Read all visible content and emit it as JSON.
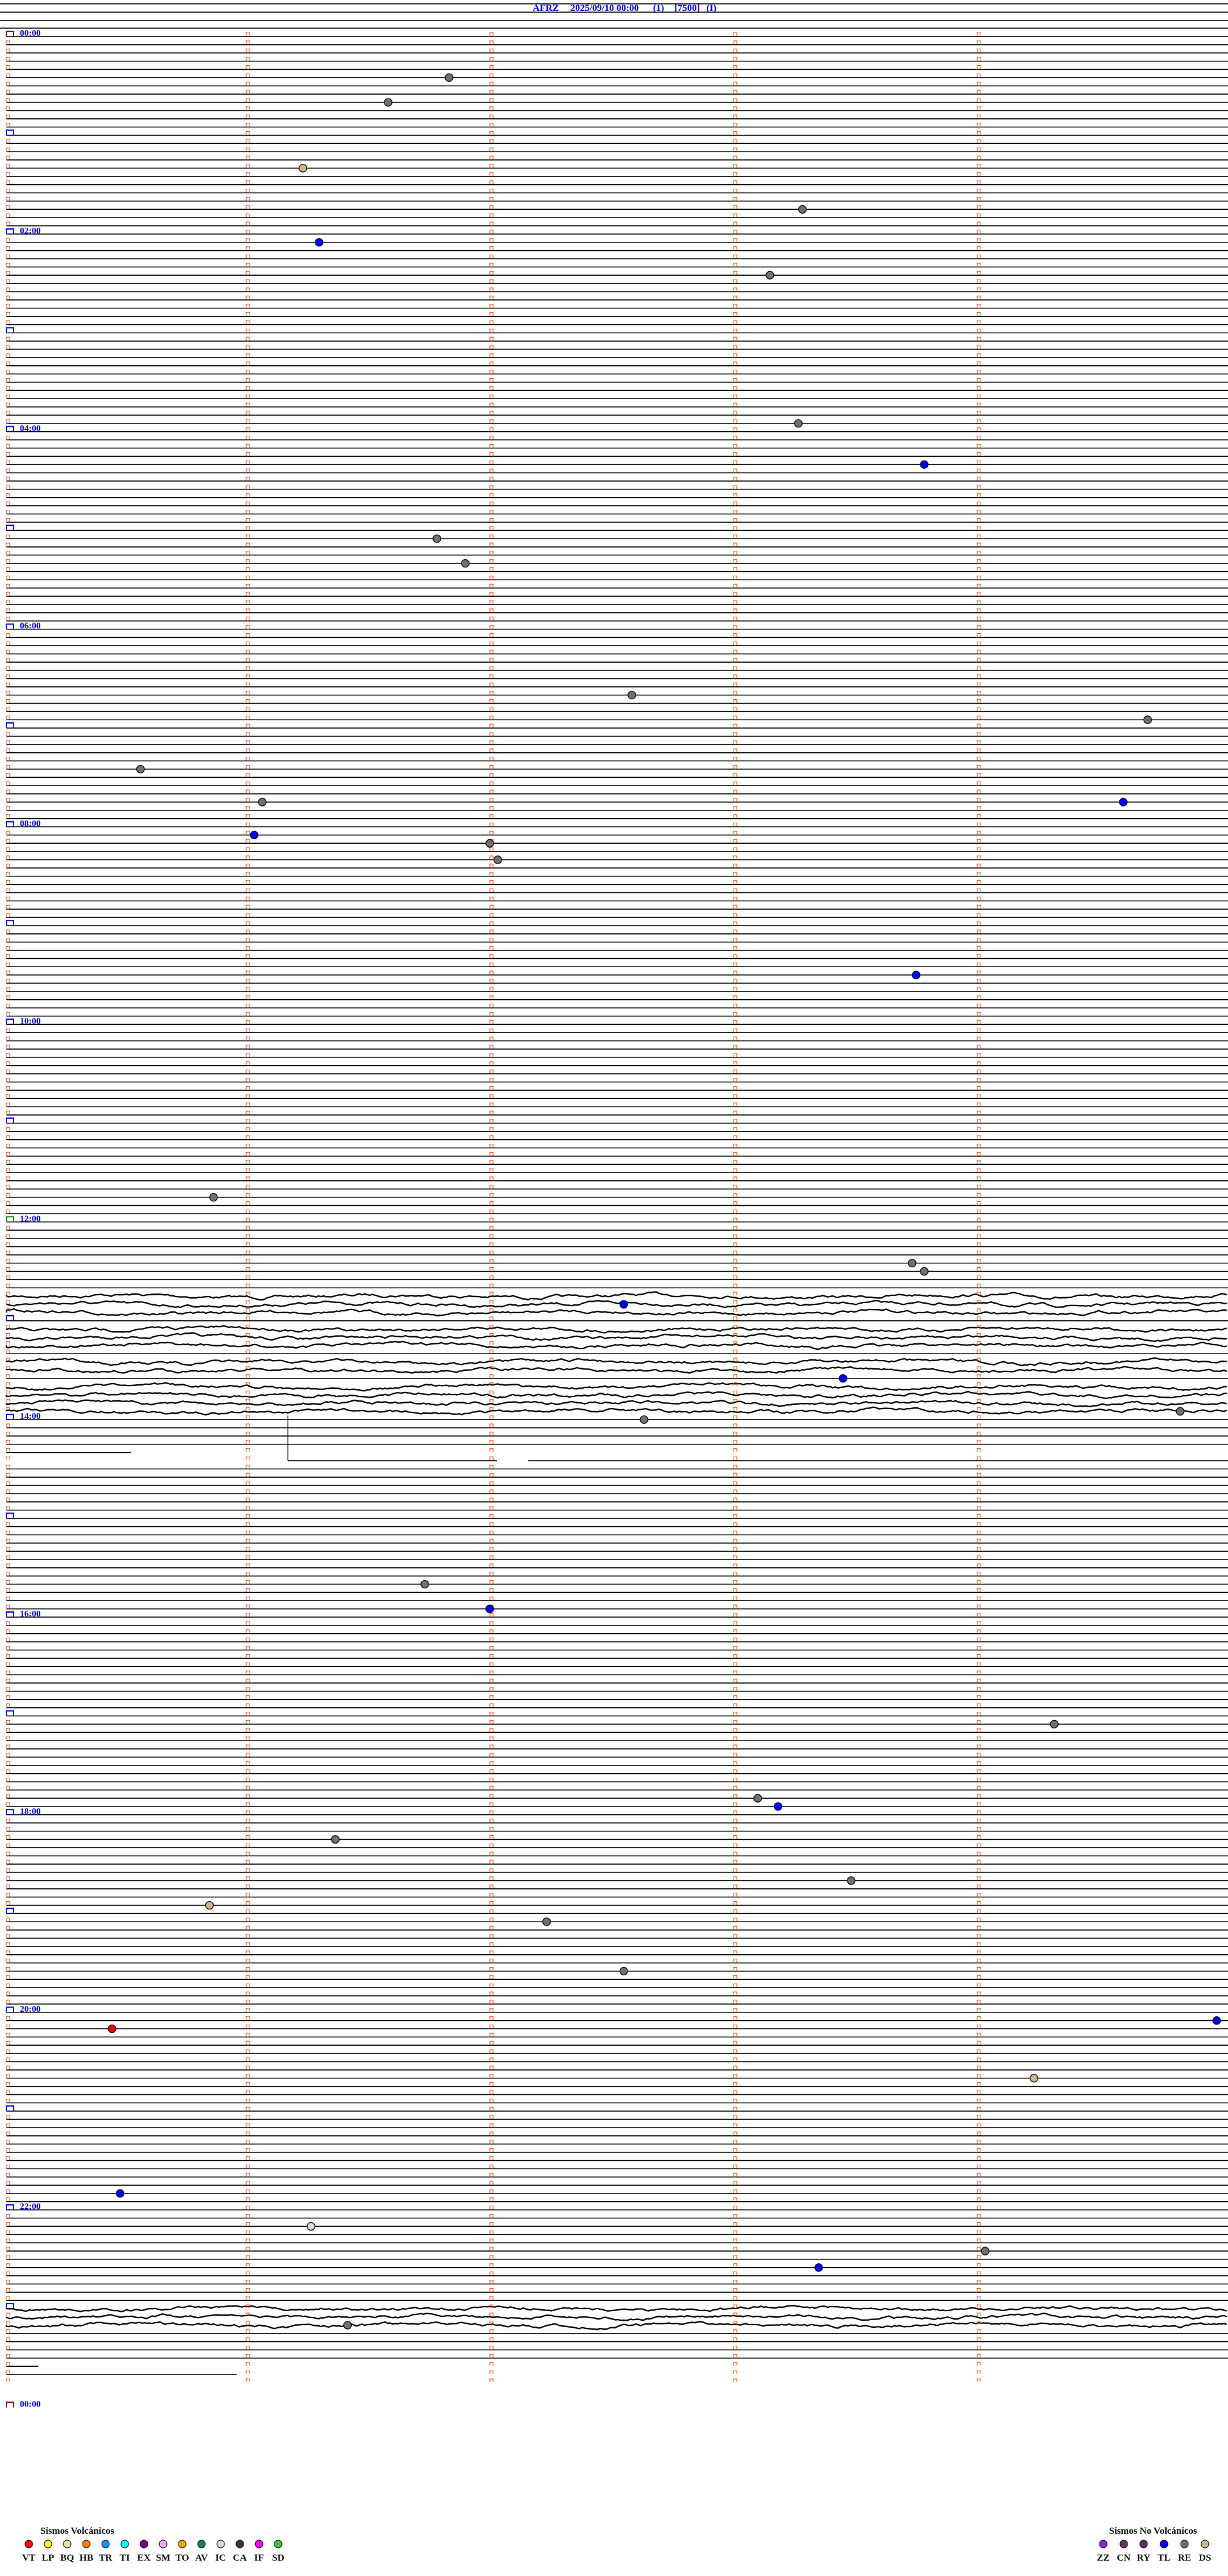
{
  "header": {
    "station": "AFRZ",
    "datetime": "2025/09/10 00:00",
    "channel": "(1)",
    "scale": "[7500]",
    "flag": "(I)"
  },
  "chart_data": {
    "type": "scatter",
    "description_kind": "helicorder",
    "start": "2025/09/10 00:00",
    "row_minutes": 5,
    "hour_labels": [
      "00:00",
      "02:00",
      "04:00",
      "06:00",
      "08:00",
      "10:00",
      "12:00",
      "14:00",
      "16:00",
      "18:00",
      "20:00",
      "22:00",
      "00:00"
    ],
    "events": [
      {
        "time": "00:26:49",
        "type": "RE"
      },
      {
        "time": "00:41:34",
        "type": "RE"
      },
      {
        "time": "01:21:13",
        "type": "DS"
      },
      {
        "time": "01:48:16",
        "type": "RE"
      },
      {
        "time": "02:06:17",
        "type": "TL"
      },
      {
        "time": "02:28:08",
        "type": "RE"
      },
      {
        "time": "03:58:15",
        "type": "RE"
      },
      {
        "time": "04:23:46",
        "type": "TL"
      },
      {
        "time": "05:06:46",
        "type": "RE"
      },
      {
        "time": "05:21:53",
        "type": "RE"
      },
      {
        "time": "06:42:34",
        "type": "RE"
      },
      {
        "time": "06:59:41",
        "type": "RE"
      },
      {
        "time": "07:25:33",
        "type": "RE"
      },
      {
        "time": "07:46:03",
        "type": "RE"
      },
      {
        "time": "07:49:35",
        "type": "TL"
      },
      {
        "time": "08:06:01",
        "type": "TL"
      },
      {
        "time": "08:11:59",
        "type": "RE"
      },
      {
        "time": "08:22:01",
        "type": "RE"
      },
      {
        "time": "09:33:44",
        "type": "TL"
      },
      {
        "time": "11:45:51",
        "type": "RE"
      },
      {
        "time": "12:28:43",
        "type": "RE"
      },
      {
        "time": "12:33:46",
        "type": "RE"
      },
      {
        "time": "12:52:32",
        "type": "TL"
      },
      {
        "time": "13:38:26",
        "type": "TL"
      },
      {
        "time": "13:59:49",
        "type": "RE"
      },
      {
        "time": "14:02:37",
        "type": "RE"
      },
      {
        "time": "15:41:43",
        "type": "RE"
      },
      {
        "time": "15:56:59",
        "type": "TL"
      },
      {
        "time": "17:09:18",
        "type": "RE"
      },
      {
        "time": "17:53:05",
        "type": "RE"
      },
      {
        "time": "17:58:10",
        "type": "TL"
      },
      {
        "time": "18:16:21",
        "type": "RE"
      },
      {
        "time": "18:43:28",
        "type": "RE"
      },
      {
        "time": "18:55:50",
        "type": "DS"
      },
      {
        "time": "19:07:13",
        "type": "RE"
      },
      {
        "time": "19:37:32",
        "type": "RE"
      },
      {
        "time": "20:09:58",
        "type": "TL"
      },
      {
        "time": "20:10:26",
        "type": "VT"
      },
      {
        "time": "20:44:13",
        "type": "DS"
      },
      {
        "time": "21:50:28",
        "type": "TL"
      },
      {
        "time": "22:11:15",
        "type": "IC"
      },
      {
        "time": "22:29:01",
        "type": "RE"
      },
      {
        "time": "22:38:20",
        "type": "TL"
      },
      {
        "time": "23:11:24",
        "type": "RE"
      }
    ]
  },
  "legend_volcanic": {
    "title": "Sismos Volcánicos",
    "items": [
      {
        "code": "VT",
        "color": "#ff0000"
      },
      {
        "code": "LP",
        "color": "#ffff00"
      },
      {
        "code": "BQ",
        "color": "#f0e0a0"
      },
      {
        "code": "HB",
        "color": "#ff8000"
      },
      {
        "code": "TR",
        "color": "#1e90ff"
      },
      {
        "code": "TI",
        "color": "#00ffff"
      },
      {
        "code": "EX",
        "color": "#800080"
      },
      {
        "code": "SM",
        "color": "#eeaaee"
      },
      {
        "code": "TO",
        "color": "#ffa500"
      },
      {
        "code": "AV",
        "color": "#1f7f5f"
      },
      {
        "code": "IC",
        "color": "#d8d8d8"
      },
      {
        "code": "CA",
        "color": "#4a2a4a"
      },
      {
        "code": "IF",
        "color": "#ff00ff"
      },
      {
        "code": "SD",
        "color": "#33cc33"
      }
    ]
  },
  "legend_nonvolcanic": {
    "title": "Sismos No Volcánicos",
    "items": [
      {
        "code": "ZZ",
        "color": "#8a2be2"
      },
      {
        "code": "CN",
        "color": "#5a3a6a"
      },
      {
        "code": "RY",
        "color": "#553355"
      },
      {
        "code": "TL",
        "color": "#0000ff"
      },
      {
        "code": "RE",
        "color": "#707070"
      },
      {
        "code": "DS",
        "color": "#d2b48c"
      }
    ]
  },
  "colors": {
    "trace": "#000000",
    "minute_marker": "#ff4500",
    "hour_marker": "#0000ff",
    "label": "#0000ee"
  }
}
